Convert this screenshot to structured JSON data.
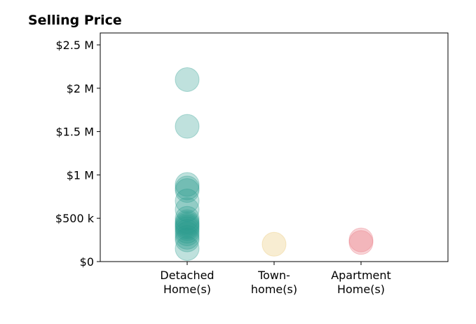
{
  "chart_data": {
    "type": "scatter",
    "title": "Selling Price",
    "xlabel": "",
    "ylabel": "",
    "categories": [
      [
        "Detached",
        "Home(s)"
      ],
      [
        "Town-",
        "home(s)"
      ],
      [
        "Apartment",
        "Home(s)"
      ]
    ],
    "ylim": [
      0,
      2500000
    ],
    "yticks": [
      0,
      500000,
      1000000,
      1500000,
      2000000,
      2500000
    ],
    "ytick_labels": [
      "$0",
      "$500 k",
      "$1 M",
      "$1.5 M",
      "$2 M",
      "$2.5 M"
    ],
    "grid": false,
    "series": [
      {
        "category_index": 0,
        "color": "#2a9d8f",
        "values": [
          2100000,
          1560000,
          890000,
          850000,
          820000,
          700000,
          600000,
          500000,
          460000,
          440000,
          420000,
          400000,
          380000,
          350000,
          320000,
          280000,
          250000,
          150000
        ]
      },
      {
        "category_index": 1,
        "color": "#e9c46a",
        "values": [
          200000
        ]
      },
      {
        "category_index": 2,
        "color": "#e76f7a",
        "values": [
          250000,
          220000
        ]
      }
    ]
  }
}
